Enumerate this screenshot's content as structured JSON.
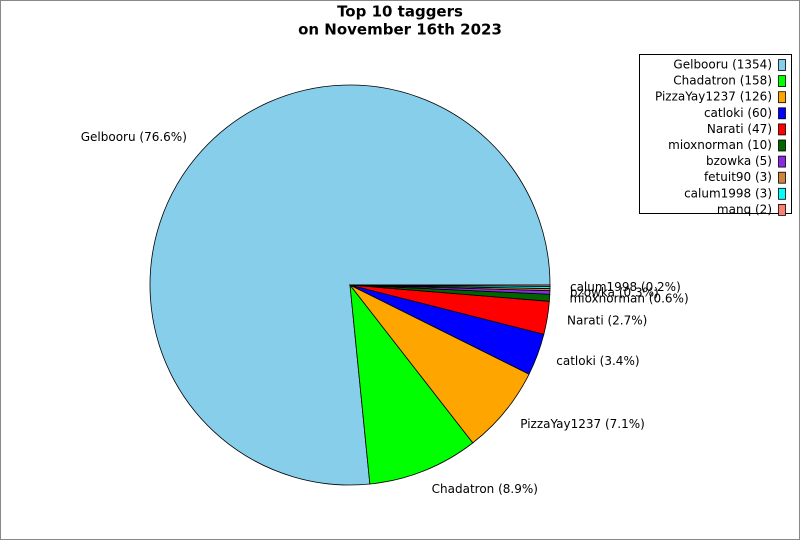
{
  "chart_data": {
    "type": "pie",
    "title": [
      "Top 10 taggers",
      "on November 16th 2023"
    ],
    "categories": [
      "Gelbooru",
      "Chadatron",
      "PizzaYay1237",
      "catloki",
      "Narati",
      "mioxnorman",
      "bzowka",
      "fetuit90",
      "calum1998",
      "manq"
    ],
    "values": [
      1354,
      158,
      126,
      60,
      47,
      10,
      5,
      3,
      3,
      2
    ],
    "value_labels": [
      "Gelbooru (76.6%)",
      "Chadatron (8.9%)",
      "PizzaYay1237 (7.1%)",
      "catloki (3.4%)",
      "Narati (2.7%)",
      "mioxnorman (0.6%)",
      "bzowka (0.3%)",
      null,
      "calum1998 (0.2%)",
      null
    ],
    "legend_labels": [
      "Gelbooru (1354)",
      "Chadatron (158)",
      "PizzaYay1237 (126)",
      "catloki (60)",
      "Narati (47)",
      "mioxnorman (10)",
      "bzowka (5)",
      "fetuit90 (3)",
      "calum1998 (3)",
      "manq (2)"
    ],
    "colors": [
      "#87ceeb",
      "#00ff00",
      "#ffa500",
      "#0000ff",
      "#ff0000",
      "#006400",
      "#8a2be2",
      "#cd853f",
      "#00ffff",
      "#fa8072"
    ],
    "legend": "upper right"
  }
}
